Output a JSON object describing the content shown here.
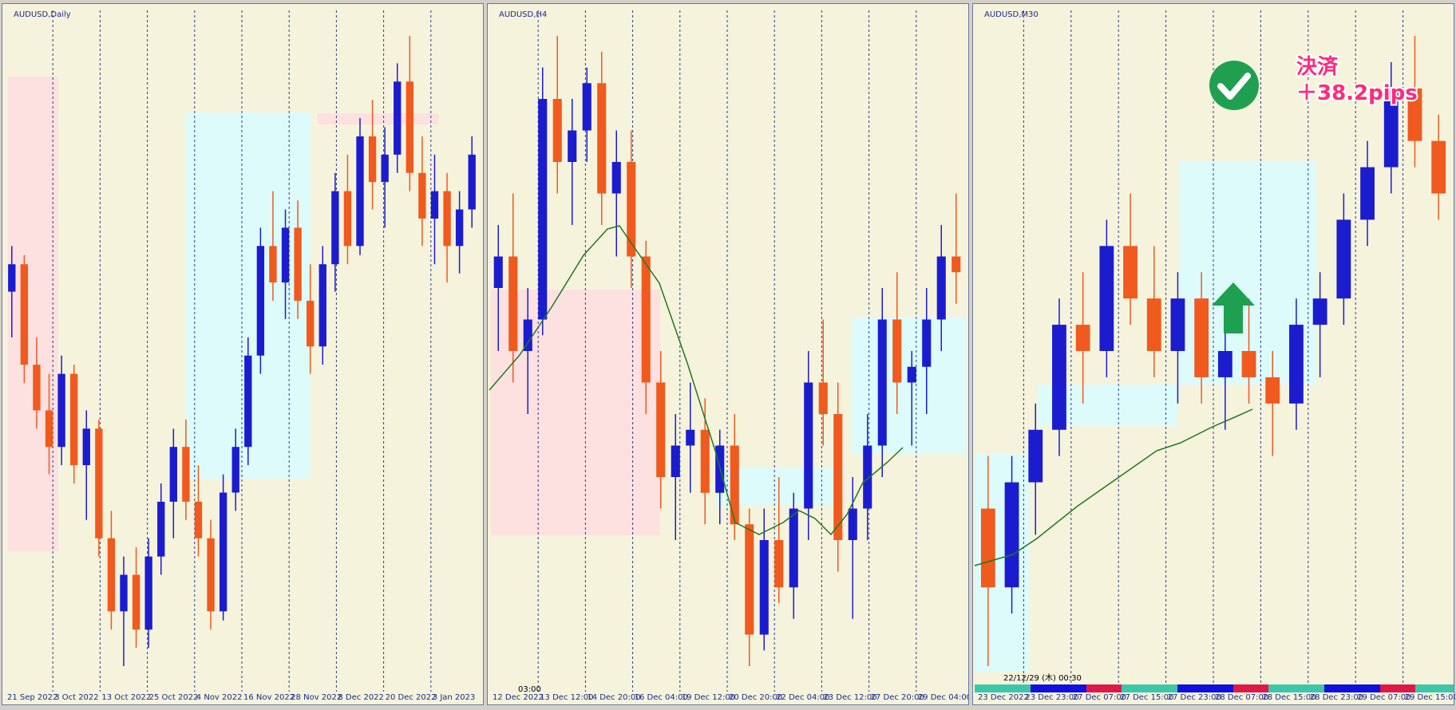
{
  "panels": [
    {
      "title": "AUDUSD,Daily",
      "x_labels": [
        "21 Sep 2022",
        "3 Oct 2022",
        "13 Oct 2022",
        "25 Oct 2022",
        "4 Nov 2022",
        "16 Nov 2022",
        "28 Nov 2022",
        "8 Dec 2022",
        "20 Dec 2022",
        "3 Jan 2023"
      ],
      "candles": [
        [
          0.665,
          0.67,
          0.66,
          0.668
        ],
        [
          0.668,
          0.669,
          0.655,
          0.657
        ],
        [
          0.657,
          0.66,
          0.65,
          0.652
        ],
        [
          0.652,
          0.656,
          0.645,
          0.648
        ],
        [
          0.648,
          0.658,
          0.646,
          0.656
        ],
        [
          0.656,
          0.657,
          0.644,
          0.646
        ],
        [
          0.646,
          0.652,
          0.64,
          0.65
        ],
        [
          0.65,
          0.651,
          0.636,
          0.638
        ],
        [
          0.638,
          0.641,
          0.628,
          0.63
        ],
        [
          0.63,
          0.636,
          0.624,
          0.634
        ],
        [
          0.634,
          0.637,
          0.626,
          0.628
        ],
        [
          0.628,
          0.638,
          0.626,
          0.636
        ],
        [
          0.636,
          0.644,
          0.634,
          0.642
        ],
        [
          0.642,
          0.65,
          0.638,
          0.648
        ],
        [
          0.648,
          0.651,
          0.64,
          0.642
        ],
        [
          0.642,
          0.646,
          0.636,
          0.638
        ],
        [
          0.638,
          0.64,
          0.628,
          0.63
        ],
        [
          0.63,
          0.645,
          0.629,
          0.643
        ],
        [
          0.643,
          0.65,
          0.641,
          0.648
        ],
        [
          0.648,
          0.66,
          0.646,
          0.658
        ],
        [
          0.658,
          0.672,
          0.656,
          0.67
        ],
        [
          0.67,
          0.676,
          0.664,
          0.666
        ],
        [
          0.666,
          0.674,
          0.662,
          0.672
        ],
        [
          0.672,
          0.675,
          0.662,
          0.664
        ],
        [
          0.664,
          0.668,
          0.656,
          0.659
        ],
        [
          0.659,
          0.67,
          0.657,
          0.668
        ],
        [
          0.668,
          0.678,
          0.665,
          0.676
        ],
        [
          0.676,
          0.68,
          0.668,
          0.67
        ],
        [
          0.67,
          0.684,
          0.669,
          0.682
        ],
        [
          0.682,
          0.686,
          0.674,
          0.677
        ],
        [
          0.677,
          0.683,
          0.672,
          0.68
        ],
        [
          0.68,
          0.69,
          0.678,
          0.688
        ],
        [
          0.688,
          0.693,
          0.676,
          0.678
        ],
        [
          0.678,
          0.682,
          0.67,
          0.673
        ],
        [
          0.673,
          0.68,
          0.668,
          0.676
        ],
        [
          0.676,
          0.678,
          0.666,
          0.67
        ],
        [
          0.67,
          0.676,
          0.667,
          0.674
        ],
        [
          0.674,
          0.682,
          0.672,
          0.68
        ]
      ]
    },
    {
      "title": "AUDUSD,H4",
      "x_labels": [
        "12 Dec 2022",
        "13 Dec 12:00",
        "14 Dec 20:00",
        "16 Dec 04:00",
        "19 Dec 12:00",
        "20 Dec 20:00",
        "22 Dec 04:00",
        "23 Dec 12:00",
        "27 Dec 20:00",
        "29 Dec 04:00"
      ],
      "candles": [
        [
          0.676,
          0.68,
          0.672,
          0.678
        ],
        [
          0.678,
          0.682,
          0.67,
          0.672
        ],
        [
          0.672,
          0.676,
          0.668,
          0.674
        ],
        [
          0.674,
          0.69,
          0.673,
          0.688
        ],
        [
          0.688,
          0.692,
          0.682,
          0.684
        ],
        [
          0.684,
          0.688,
          0.68,
          0.686
        ],
        [
          0.686,
          0.69,
          0.684,
          0.689
        ],
        [
          0.689,
          0.691,
          0.68,
          0.682
        ],
        [
          0.682,
          0.686,
          0.678,
          0.684
        ],
        [
          0.684,
          0.686,
          0.676,
          0.678
        ],
        [
          0.678,
          0.679,
          0.668,
          0.67
        ],
        [
          0.67,
          0.672,
          0.662,
          0.664
        ],
        [
          0.664,
          0.668,
          0.66,
          0.666
        ],
        [
          0.666,
          0.67,
          0.663,
          0.667
        ],
        [
          0.667,
          0.669,
          0.661,
          0.663
        ],
        [
          0.663,
          0.667,
          0.661,
          0.666
        ],
        [
          0.666,
          0.668,
          0.66,
          0.661
        ],
        [
          0.661,
          0.662,
          0.652,
          0.654
        ],
        [
          0.654,
          0.662,
          0.653,
          0.66
        ],
        [
          0.66,
          0.664,
          0.656,
          0.657
        ],
        [
          0.657,
          0.663,
          0.655,
          0.662
        ],
        [
          0.662,
          0.672,
          0.66,
          0.67
        ],
        [
          0.67,
          0.674,
          0.666,
          0.668
        ],
        [
          0.668,
          0.67,
          0.658,
          0.66
        ],
        [
          0.66,
          0.664,
          0.655,
          0.662
        ],
        [
          0.662,
          0.668,
          0.66,
          0.666
        ],
        [
          0.666,
          0.676,
          0.664,
          0.674
        ],
        [
          0.674,
          0.677,
          0.668,
          0.67
        ],
        [
          0.67,
          0.672,
          0.666,
          0.671
        ],
        [
          0.671,
          0.676,
          0.668,
          0.674
        ],
        [
          0.674,
          0.68,
          0.672,
          0.678
        ],
        [
          0.678,
          0.682,
          0.675,
          0.677
        ]
      ]
    },
    {
      "title": "AUDUSD,M30",
      "x_labels": [
        "23 Dec 2022",
        "23 Dec 23:00",
        "27 Dec 07:00",
        "27 Dec 15:00",
        "27 Dec 23:00",
        "28 Dec 07:00",
        "28 Dec 15:00",
        "28 Dec 23:00",
        "29 Dec 07:00",
        "29 Dec 15:00"
      ],
      "candles": [
        [
          0.668,
          0.67,
          0.662,
          0.665
        ],
        [
          0.665,
          0.67,
          0.664,
          0.669
        ],
        [
          0.669,
          0.672,
          0.667,
          0.671
        ],
        [
          0.671,
          0.676,
          0.67,
          0.675
        ],
        [
          0.675,
          0.677,
          0.672,
          0.674
        ],
        [
          0.674,
          0.679,
          0.673,
          0.678
        ],
        [
          0.678,
          0.68,
          0.675,
          0.676
        ],
        [
          0.676,
          0.678,
          0.673,
          0.674
        ],
        [
          0.674,
          0.677,
          0.672,
          0.676
        ],
        [
          0.676,
          0.677,
          0.672,
          0.673
        ],
        [
          0.673,
          0.675,
          0.671,
          0.674
        ],
        [
          0.674,
          0.676,
          0.672,
          0.673
        ],
        [
          0.673,
          0.674,
          0.67,
          0.672
        ],
        [
          0.672,
          0.676,
          0.671,
          0.675
        ],
        [
          0.675,
          0.677,
          0.673,
          0.676
        ],
        [
          0.676,
          0.68,
          0.675,
          0.679
        ],
        [
          0.679,
          0.682,
          0.678,
          0.681
        ],
        [
          0.681,
          0.685,
          0.68,
          0.684
        ],
        [
          0.684,
          0.686,
          0.681,
          0.682
        ],
        [
          0.682,
          0.683,
          0.679,
          0.68
        ]
      ]
    }
  ],
  "annotations": {
    "time_label_h4": "03:00",
    "time_label_m30": "22/12/29 (木) 00:30",
    "settlement": "決済",
    "pips": "＋38.2pips"
  }
}
